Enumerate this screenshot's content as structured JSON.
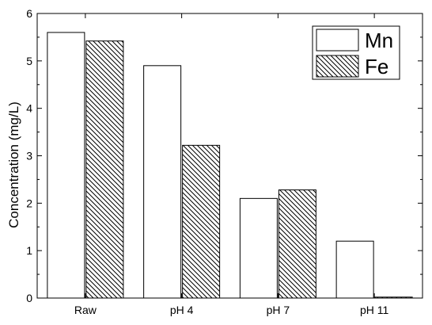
{
  "chart_data": {
    "type": "bar",
    "categories": [
      "Raw",
      "pH 4",
      "pH 7",
      "pH 11"
    ],
    "series": [
      {
        "name": "Mn",
        "values": [
          5.6,
          4.9,
          2.1,
          1.2
        ],
        "fill": "#ffffff",
        "pattern": "none"
      },
      {
        "name": "Fe",
        "values": [
          5.42,
          3.22,
          2.28,
          0.02
        ],
        "fill": "#ffffff",
        "pattern": "diagonal-hatch"
      }
    ],
    "title": "",
    "xlabel": "",
    "ylabel": "Concentration (mg/L)",
    "ylim": [
      0,
      6
    ],
    "yticks": [
      "0",
      "1",
      "2",
      "3",
      "4",
      "5",
      "6"
    ],
    "grid": false,
    "legend_position": "top-right"
  },
  "colors": {
    "axis": "#000000",
    "bar_stroke": "#000000",
    "hatch": "#000000",
    "background": "#ffffff"
  }
}
